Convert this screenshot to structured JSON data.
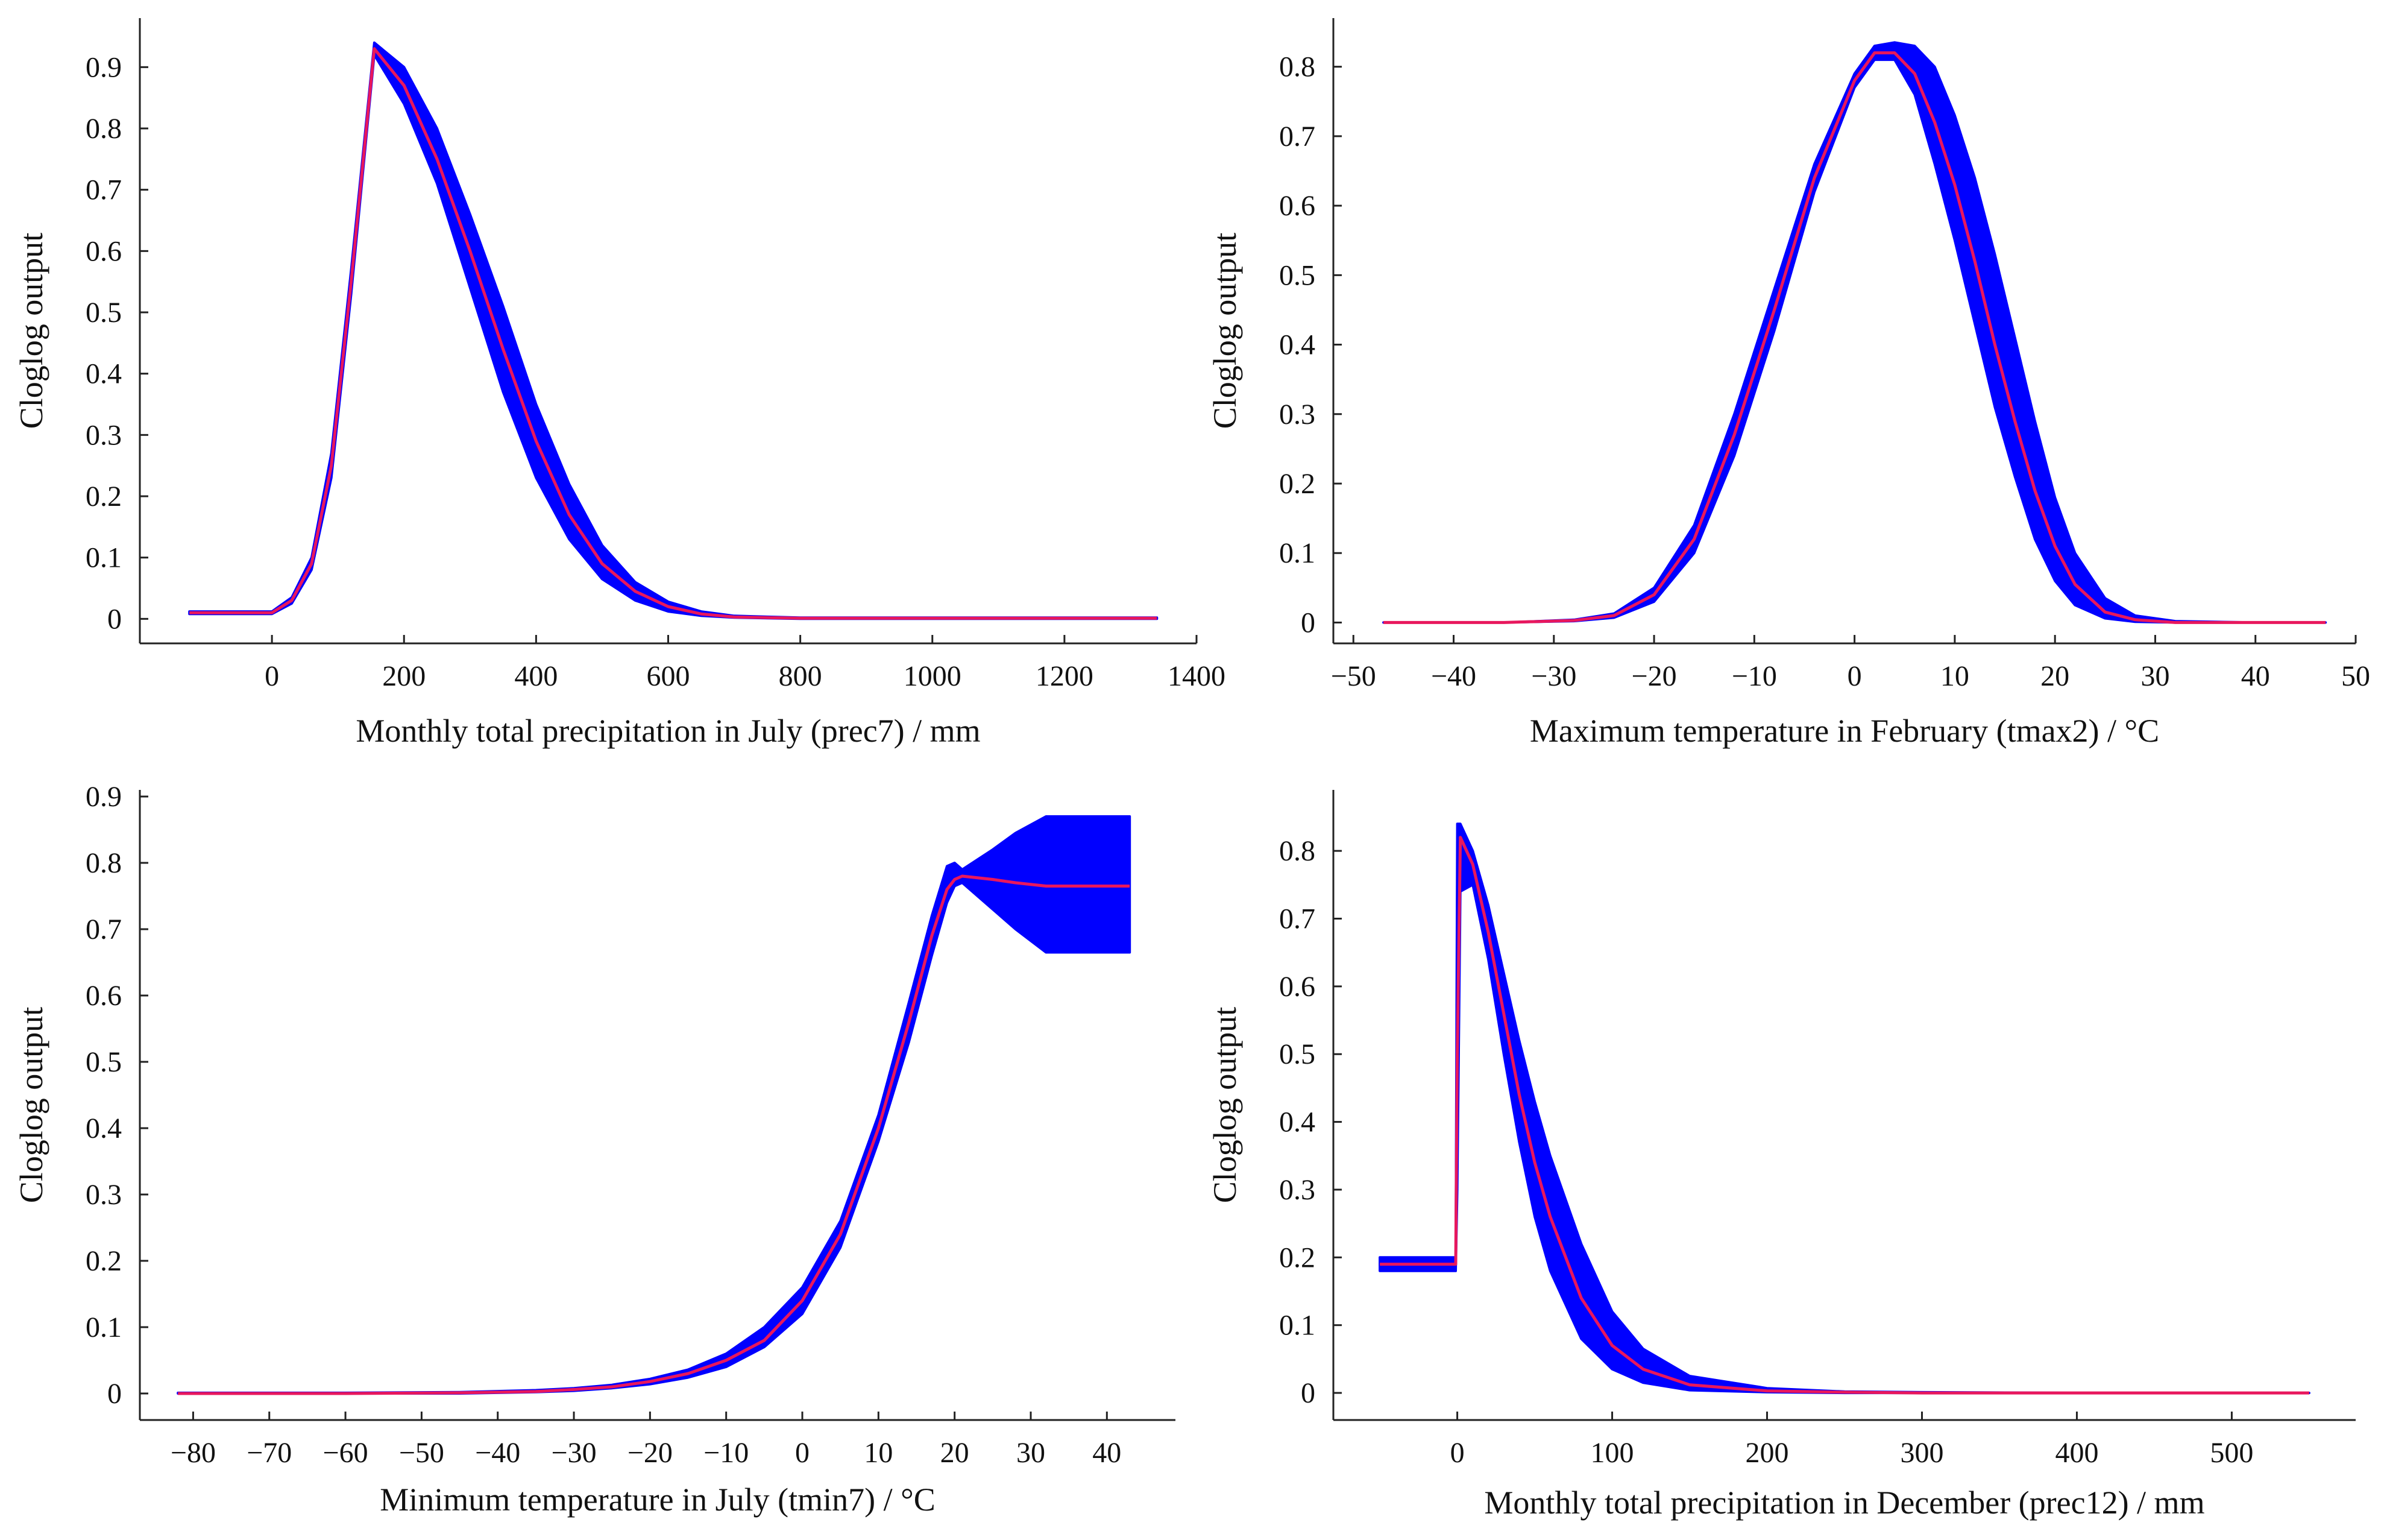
{
  "chart_data": [
    {
      "type": "line",
      "id": "prec7",
      "xlabel": "Monthly total precipitation in July (prec7) / mm",
      "ylabel": "Cloglog output",
      "xlim": [
        -200,
        1400
      ],
      "ylim": [
        -0.04,
        0.98
      ],
      "xticks": [
        0,
        200,
        400,
        600,
        800,
        1000,
        1200,
        1400
      ],
      "xtick_labels": [
        "0",
        "200",
        "400",
        "600",
        "800",
        "1000",
        "1200",
        "1400"
      ],
      "yticks": [
        0,
        0.1,
        0.2,
        0.3,
        0.4,
        0.5,
        0.6,
        0.7,
        0.8,
        0.9
      ],
      "ytick_labels": [
        "0",
        "0.1",
        "0.2",
        "0.3",
        "0.4",
        "0.5",
        "0.6",
        "0.7",
        "0.8",
        "0.9"
      ],
      "band_color": "#0000ff",
      "line_color": "#e8175d",
      "series": [
        {
          "name": "mean",
          "x": [
            -125,
            0,
            30,
            60,
            90,
            120,
            155,
            200,
            250,
            300,
            350,
            400,
            450,
            500,
            550,
            600,
            650,
            700,
            800,
            1000,
            1200,
            1340
          ],
          "values": [
            0.01,
            0.01,
            0.03,
            0.09,
            0.25,
            0.55,
            0.93,
            0.87,
            0.75,
            0.6,
            0.44,
            0.29,
            0.17,
            0.09,
            0.045,
            0.02,
            0.008,
            0.003,
            0.001,
            0.001,
            0.001,
            0.001
          ]
        },
        {
          "name": "lower",
          "x": [
            -125,
            0,
            30,
            60,
            90,
            120,
            155,
            200,
            250,
            300,
            350,
            400,
            450,
            500,
            550,
            600,
            650,
            700,
            800,
            1000,
            1200,
            1340
          ],
          "values": [
            0.008,
            0.008,
            0.025,
            0.08,
            0.23,
            0.53,
            0.92,
            0.84,
            0.71,
            0.54,
            0.37,
            0.23,
            0.13,
            0.065,
            0.03,
            0.012,
            0.005,
            0.002,
            0.0,
            0.0,
            0.0,
            0.0
          ]
        },
        {
          "name": "upper",
          "x": [
            -125,
            0,
            30,
            60,
            90,
            120,
            155,
            200,
            250,
            300,
            350,
            400,
            450,
            500,
            550,
            600,
            650,
            700,
            800,
            1000,
            1200,
            1340
          ],
          "values": [
            0.012,
            0.012,
            0.035,
            0.1,
            0.27,
            0.57,
            0.94,
            0.9,
            0.8,
            0.66,
            0.51,
            0.35,
            0.22,
            0.12,
            0.06,
            0.028,
            0.012,
            0.005,
            0.002,
            0.002,
            0.002,
            0.002
          ]
        }
      ]
    },
    {
      "type": "line",
      "id": "tmax2",
      "xlabel": "Maximum temperature in February (tmax2) / °C",
      "ylabel": "Cloglog output",
      "xlim": [
        -52,
        50
      ],
      "ylim": [
        -0.03,
        0.87
      ],
      "xticks": [
        -50,
        -40,
        -30,
        -20,
        -10,
        0,
        10,
        20,
        30,
        40,
        50
      ],
      "xtick_labels": [
        "−50",
        "−40",
        "−30",
        "−20",
        "−10",
        "0",
        "10",
        "20",
        "30",
        "40",
        "50"
      ],
      "yticks": [
        0,
        0.1,
        0.2,
        0.3,
        0.4,
        0.5,
        0.6,
        0.7,
        0.8
      ],
      "ytick_labels": [
        "0",
        "0.1",
        "0.2",
        "0.3",
        "0.4",
        "0.5",
        "0.6",
        "0.7",
        "0.8"
      ],
      "band_color": "#0000ff",
      "line_color": "#e8175d",
      "series": [
        {
          "name": "mean",
          "x": [
            -47,
            -35,
            -28,
            -24,
            -20,
            -16,
            -12,
            -8,
            -4,
            0,
            2,
            4,
            6,
            8,
            10,
            12,
            14,
            16,
            18,
            20,
            22,
            25,
            28,
            32,
            40,
            47
          ],
          "values": [
            0.0,
            0.0,
            0.003,
            0.01,
            0.04,
            0.12,
            0.27,
            0.45,
            0.64,
            0.78,
            0.82,
            0.82,
            0.79,
            0.72,
            0.63,
            0.52,
            0.4,
            0.29,
            0.19,
            0.11,
            0.055,
            0.015,
            0.004,
            0.0,
            0.0,
            0.0
          ]
        },
        {
          "name": "lower",
          "x": [
            -47,
            -35,
            -28,
            -24,
            -20,
            -16,
            -12,
            -8,
            -4,
            0,
            2,
            4,
            6,
            8,
            10,
            12,
            14,
            16,
            18,
            20,
            22,
            25,
            28,
            32,
            40,
            47
          ],
          "values": [
            0.0,
            0.0,
            0.002,
            0.007,
            0.03,
            0.1,
            0.24,
            0.42,
            0.62,
            0.77,
            0.81,
            0.81,
            0.76,
            0.66,
            0.55,
            0.43,
            0.31,
            0.21,
            0.12,
            0.06,
            0.025,
            0.006,
            0.001,
            0.0,
            0.0,
            0.0
          ]
        },
        {
          "name": "upper",
          "x": [
            -47,
            -35,
            -28,
            -24,
            -20,
            -16,
            -12,
            -8,
            -4,
            0,
            2,
            4,
            6,
            8,
            10,
            12,
            14,
            16,
            18,
            20,
            22,
            25,
            28,
            32,
            40,
            47
          ],
          "values": [
            0.0,
            0.0,
            0.004,
            0.013,
            0.05,
            0.14,
            0.3,
            0.48,
            0.66,
            0.79,
            0.83,
            0.835,
            0.83,
            0.8,
            0.73,
            0.64,
            0.53,
            0.41,
            0.29,
            0.18,
            0.1,
            0.035,
            0.01,
            0.002,
            0.0,
            0.0
          ]
        }
      ]
    },
    {
      "type": "line",
      "id": "tmin7",
      "xlabel": "Minimum temperature in July (tmin7) / °C",
      "ylabel": "Cloglog output",
      "xlim": [
        -87,
        49
      ],
      "ylim": [
        -0.04,
        0.91
      ],
      "xticks": [
        -80,
        -70,
        -60,
        -50,
        -40,
        -30,
        -20,
        -10,
        0,
        10,
        20,
        30,
        40
      ],
      "xtick_labels": [
        "−80",
        "−70",
        "−60",
        "−50",
        "−40",
        "−30",
        "−20",
        "−10",
        "0",
        "10",
        "20",
        "30",
        "40"
      ],
      "yticks": [
        0,
        0.1,
        0.2,
        0.3,
        0.4,
        0.5,
        0.6,
        0.7,
        0.8,
        0.9
      ],
      "ytick_labels": [
        "0",
        "0.1",
        "0.2",
        "0.3",
        "0.4",
        "0.5",
        "0.6",
        "0.7",
        "0.8",
        "0.9"
      ],
      "band_color": "#0000ff",
      "line_color": "#e8175d",
      "series": [
        {
          "name": "mean",
          "x": [
            -82,
            -60,
            -45,
            -35,
            -30,
            -25,
            -20,
            -15,
            -10,
            -5,
            0,
            5,
            10,
            14,
            17,
            19,
            20,
            21,
            25,
            28,
            32,
            36,
            43
          ],
          "values": [
            0.0,
            0.0,
            0.001,
            0.003,
            0.006,
            0.01,
            0.018,
            0.03,
            0.05,
            0.08,
            0.14,
            0.24,
            0.4,
            0.56,
            0.69,
            0.76,
            0.775,
            0.78,
            0.775,
            0.77,
            0.765,
            0.765,
            0.765
          ]
        },
        {
          "name": "lower",
          "x": [
            -82,
            -60,
            -45,
            -35,
            -30,
            -25,
            -20,
            -15,
            -10,
            -5,
            0,
            5,
            10,
            14,
            17,
            19,
            20,
            21,
            25,
            28,
            32,
            36,
            43
          ],
          "values": [
            0.0,
            0.0,
            0.0,
            0.002,
            0.004,
            0.008,
            0.014,
            0.024,
            0.04,
            0.07,
            0.12,
            0.22,
            0.38,
            0.53,
            0.66,
            0.74,
            0.765,
            0.77,
            0.73,
            0.7,
            0.665,
            0.665,
            0.665
          ]
        },
        {
          "name": "upper",
          "x": [
            -82,
            -60,
            -45,
            -35,
            -30,
            -25,
            -20,
            -15,
            -10,
            -5,
            0,
            5,
            10,
            14,
            17,
            19,
            20,
            21,
            25,
            28,
            32,
            36,
            43
          ],
          "values": [
            0.001,
            0.001,
            0.002,
            0.005,
            0.008,
            0.013,
            0.022,
            0.036,
            0.06,
            0.1,
            0.16,
            0.26,
            0.42,
            0.59,
            0.72,
            0.795,
            0.8,
            0.79,
            0.82,
            0.845,
            0.87,
            0.87,
            0.87
          ]
        }
      ]
    },
    {
      "type": "line",
      "id": "prec12",
      "xlabel": "Monthly total precipitation in December (prec12) / mm",
      "ylabel": "Cloglog output",
      "xlim": [
        -80,
        580
      ],
      "ylim": [
        -0.04,
        0.89
      ],
      "xticks": [
        0,
        100,
        200,
        300,
        400,
        500
      ],
      "xtick_labels": [
        "0",
        "100",
        "200",
        "300",
        "400",
        "500"
      ],
      "yticks": [
        0,
        0.1,
        0.2,
        0.3,
        0.4,
        0.5,
        0.6,
        0.7,
        0.8
      ],
      "ytick_labels": [
        "0",
        "0.1",
        "0.2",
        "0.3",
        "0.4",
        "0.5",
        "0.6",
        "0.7",
        "0.8"
      ],
      "band_color": "#0000ff",
      "line_color": "#e8175d",
      "series": [
        {
          "name": "mean",
          "x": [
            -50,
            -1,
            0,
            2,
            10,
            20,
            30,
            40,
            50,
            60,
            80,
            100,
            120,
            150,
            200,
            250,
            300,
            400,
            550
          ],
          "values": [
            0.19,
            0.19,
            0.5,
            0.82,
            0.78,
            0.68,
            0.56,
            0.44,
            0.34,
            0.26,
            0.14,
            0.07,
            0.035,
            0.012,
            0.003,
            0.001,
            0.0,
            0.0,
            0.0
          ]
        },
        {
          "name": "lower",
          "x": [
            -50,
            -1,
            0,
            2,
            10,
            20,
            30,
            40,
            50,
            60,
            80,
            100,
            120,
            150,
            200,
            250,
            300,
            400,
            550
          ],
          "values": [
            0.18,
            0.18,
            0.3,
            0.74,
            0.75,
            0.64,
            0.5,
            0.37,
            0.26,
            0.18,
            0.08,
            0.035,
            0.015,
            0.004,
            0.001,
            0.0,
            0.0,
            0.0,
            0.0
          ]
        },
        {
          "name": "upper",
          "x": [
            -50,
            -1,
            0,
            2,
            10,
            20,
            30,
            40,
            50,
            60,
            80,
            100,
            120,
            150,
            200,
            250,
            300,
            400,
            550
          ],
          "values": [
            0.2,
            0.2,
            0.84,
            0.84,
            0.8,
            0.72,
            0.62,
            0.52,
            0.43,
            0.35,
            0.22,
            0.12,
            0.065,
            0.025,
            0.007,
            0.002,
            0.001,
            0.0,
            0.0
          ]
        }
      ]
    }
  ]
}
